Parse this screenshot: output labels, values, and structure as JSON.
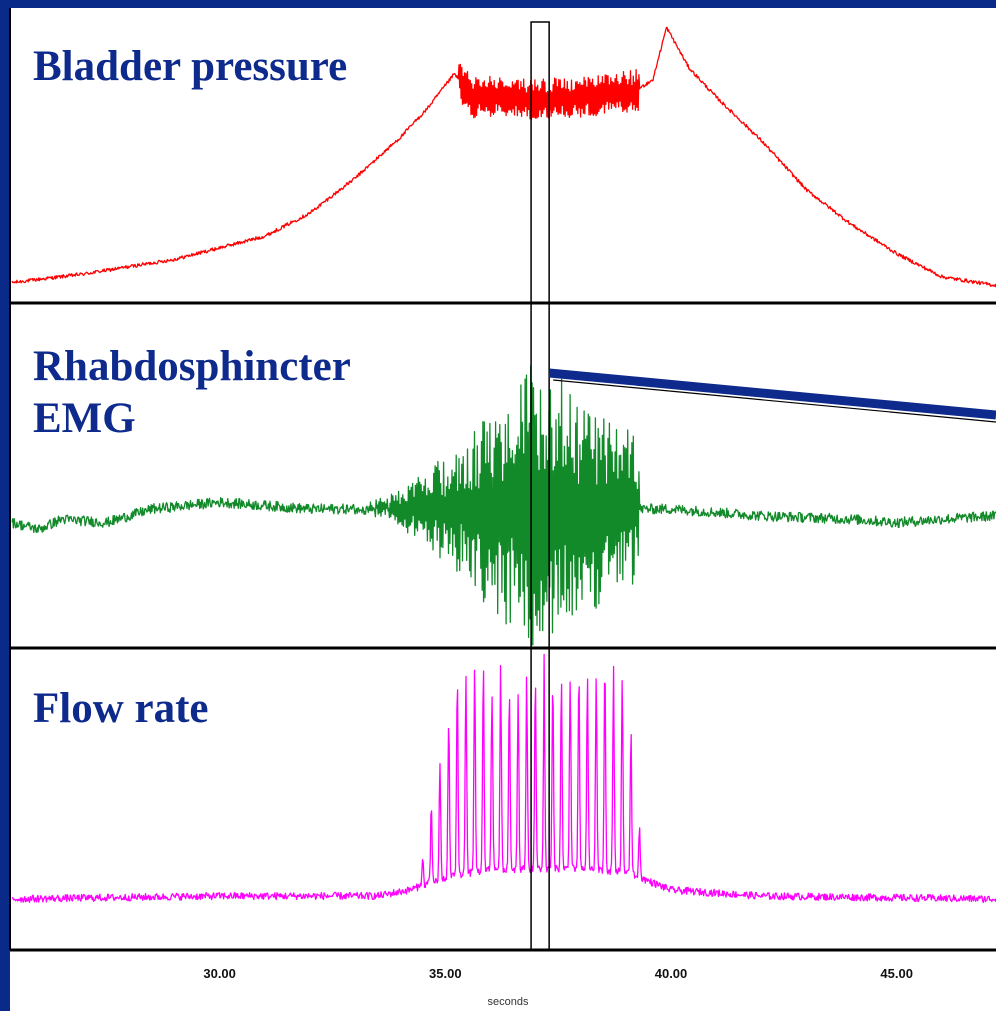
{
  "chart_data": {
    "type": "line",
    "colors": {
      "background": "#0a2a8a",
      "panel": "#ffffff",
      "bladder": "#ff0000",
      "emg": "#128a2a",
      "flow": "#ff00ff",
      "title": "#0d2a8c",
      "connector": "#0d2a8c"
    },
    "x_axis": {
      "label": "seconds",
      "ticks": [
        {
          "value": 30.0,
          "label": "30.00"
        },
        {
          "value": 35.0,
          "label": "35.00"
        },
        {
          "value": 40.0,
          "label": "40.00"
        },
        {
          "value": 45.0,
          "label": "45.00"
        }
      ],
      "range": [
        25.4,
        47.2
      ]
    },
    "highlight_window": [
      36.9,
      37.3
    ],
    "panels": [
      {
        "id": "bladder",
        "title_lines": [
          "Bladder pressure"
        ],
        "series": {
          "color": "bladder",
          "baseline": [
            [
              25.4,
              0.06
            ],
            [
              27.0,
              0.09
            ],
            [
              29.0,
              0.14
            ],
            [
              31.0,
              0.22
            ],
            [
              32.0,
              0.3
            ],
            [
              33.0,
              0.42
            ],
            [
              34.0,
              0.56
            ],
            [
              34.6,
              0.66
            ],
            [
              35.2,
              0.78
            ],
            [
              35.6,
              0.7
            ],
            [
              36.2,
              0.7
            ],
            [
              37.0,
              0.69
            ],
            [
              38.0,
              0.7
            ],
            [
              39.2,
              0.72
            ],
            [
              39.6,
              0.76
            ],
            [
              39.9,
              0.94
            ],
            [
              40.4,
              0.8
            ],
            [
              41.0,
              0.7
            ],
            [
              42.0,
              0.55
            ],
            [
              43.0,
              0.38
            ],
            [
              44.0,
              0.26
            ],
            [
              45.0,
              0.16
            ],
            [
              46.0,
              0.08
            ],
            [
              47.2,
              0.05
            ]
          ],
          "oscillation": {
            "from": 35.3,
            "to": 39.3,
            "amplitude": 0.07
          },
          "noise": 0.006
        }
      },
      {
        "id": "emg",
        "title_lines": [
          "Rhabdosphincter",
          "EMG"
        ],
        "series": {
          "color": "emg",
          "baseline": [
            [
              25.4,
              0.36
            ],
            [
              26.0,
              0.34
            ],
            [
              26.5,
              0.37
            ],
            [
              27.5,
              0.36
            ],
            [
              28.5,
              0.4
            ],
            [
              30.0,
              0.42
            ],
            [
              32.0,
              0.4
            ],
            [
              34.0,
              0.4
            ],
            [
              36.0,
              0.4
            ],
            [
              38.0,
              0.4
            ],
            [
              40.0,
              0.4
            ],
            [
              42.0,
              0.38
            ],
            [
              44.0,
              0.37
            ],
            [
              45.0,
              0.36
            ],
            [
              46.0,
              0.37
            ],
            [
              47.2,
              0.38
            ]
          ],
          "burst": {
            "from": 33.0,
            "to": 39.3,
            "peak_at": 36.9,
            "amplitude": 0.44
          },
          "noise": 0.015
        }
      },
      {
        "id": "flow",
        "title_lines": [
          "Flow rate"
        ],
        "series": {
          "color": "flow",
          "baseline": [
            [
              25.4,
              0.17
            ],
            [
              30.0,
              0.18
            ],
            [
              33.5,
              0.18
            ],
            [
              34.2,
              0.2
            ],
            [
              35.0,
              0.24
            ],
            [
              36.0,
              0.27
            ],
            [
              37.0,
              0.27
            ],
            [
              38.0,
              0.27
            ],
            [
              39.0,
              0.26
            ],
            [
              39.5,
              0.23
            ],
            [
              40.0,
              0.2
            ],
            [
              42.0,
              0.18
            ],
            [
              47.2,
              0.17
            ]
          ],
          "pulses": {
            "from": 34.4,
            "to": 39.4,
            "count": 26,
            "peak": 0.98
          },
          "noise": 0.012
        }
      }
    ],
    "grid": false,
    "legend": "none"
  }
}
